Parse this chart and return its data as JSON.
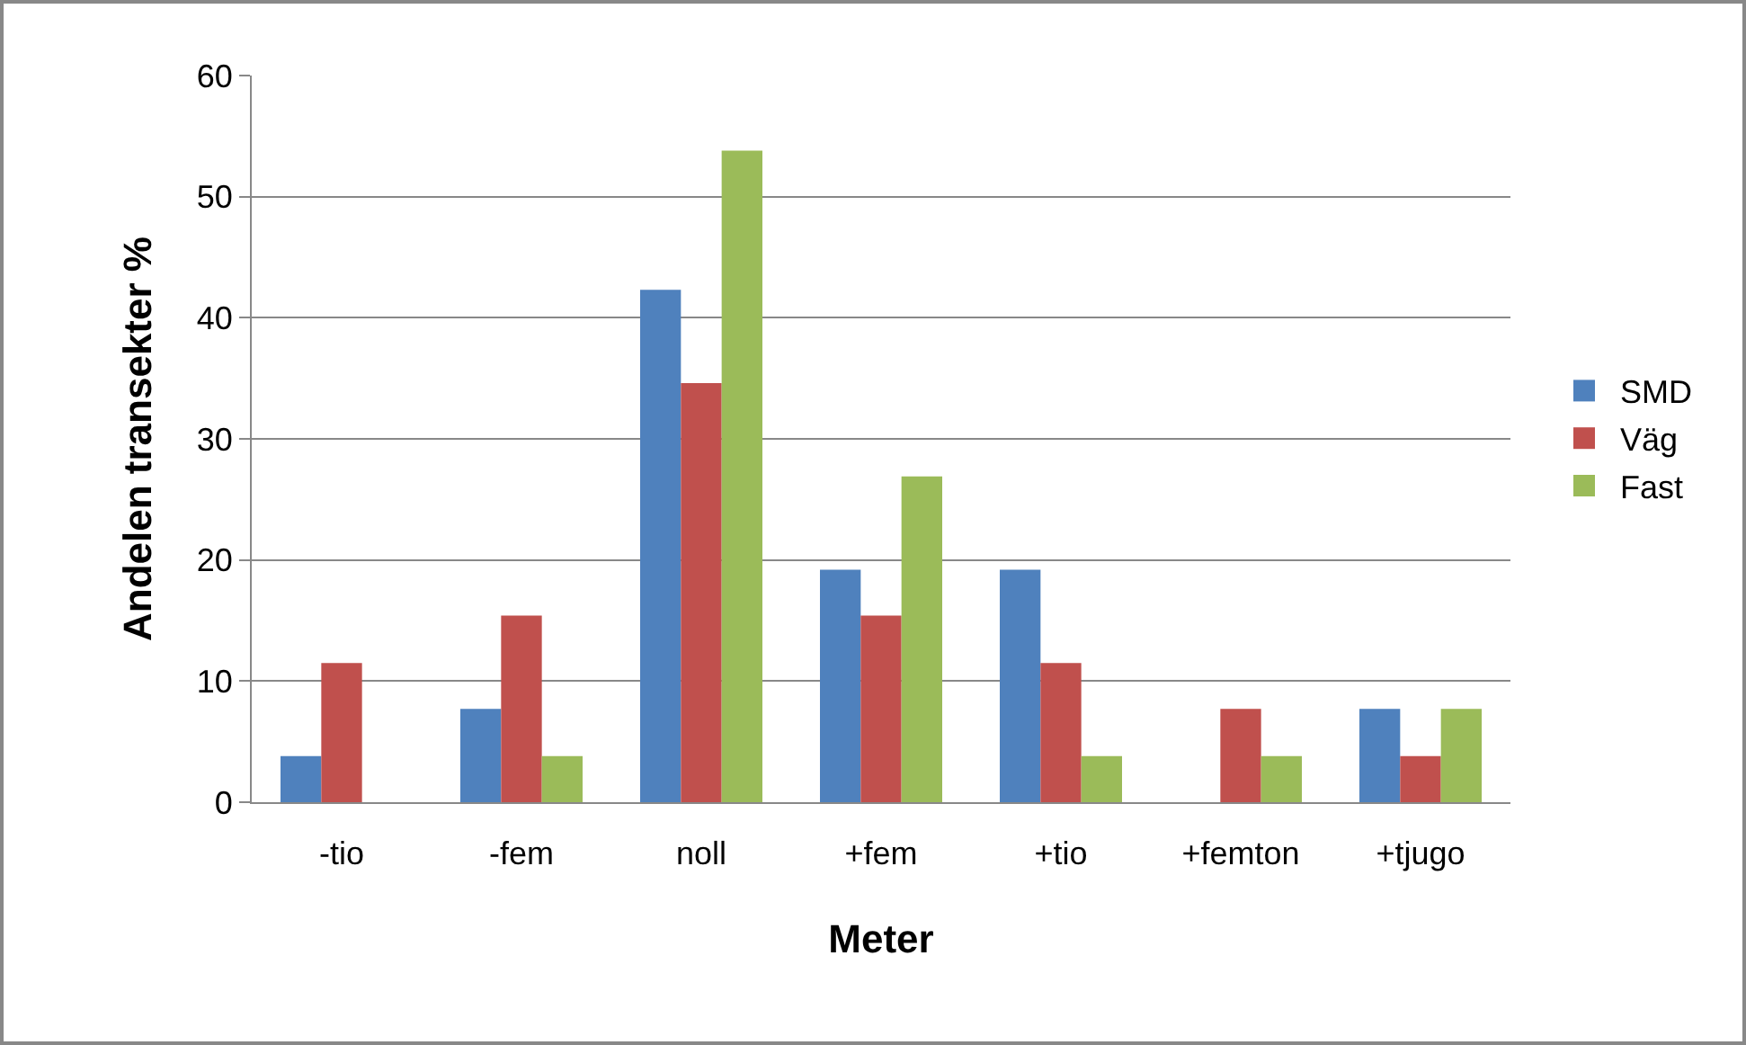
{
  "chart_data": {
    "type": "bar",
    "xlabel": "Meter",
    "ylabel": "Andelen transekter %",
    "categories": [
      "-tio",
      "-fem",
      "noll",
      "+fem",
      "+tio",
      "+femton",
      "+tjugo"
    ],
    "series": [
      {
        "name": "SMD",
        "color": "#4f81bd",
        "values": [
          3.8,
          7.7,
          42.3,
          19.2,
          19.2,
          0,
          7.7
        ]
      },
      {
        "name": "Väg",
        "color": "#c0504d",
        "values": [
          11.5,
          15.4,
          34.6,
          15.4,
          11.5,
          7.7,
          3.8
        ]
      },
      {
        "name": "Fast",
        "color": "#9bbb59",
        "values": [
          0,
          3.8,
          53.8,
          26.9,
          3.8,
          3.8,
          7.7
        ]
      }
    ],
    "ylim": [
      0,
      60
    ],
    "yticks": [
      0,
      10,
      20,
      30,
      40,
      50,
      60
    ],
    "grid": "y",
    "legend": "right"
  }
}
